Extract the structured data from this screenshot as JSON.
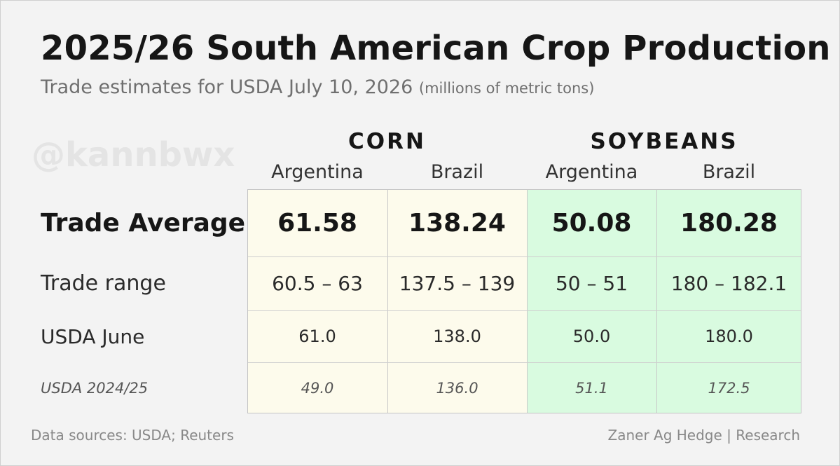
{
  "chart_data": {
    "type": "table",
    "title": "2025/26 South American Crop Production",
    "subtitle": "Trade estimates for USDA July 10, 2026",
    "subtitle_note": "(millions of metric tons)",
    "watermark": "@kannbwx",
    "groups": [
      {
        "name": "CORN",
        "columns": [
          "Argentina",
          "Brazil"
        ]
      },
      {
        "name": "SOYBEANS",
        "columns": [
          "Argentina",
          "Brazil"
        ]
      }
    ],
    "rows": [
      {
        "label": "Trade Average",
        "values": [
          "61.58",
          "138.24",
          "50.08",
          "180.28"
        ]
      },
      {
        "label": "Trade range",
        "values": [
          "60.5 – 63",
          "137.5 – 139",
          "50 – 51",
          "180 – 182.1"
        ]
      },
      {
        "label": "USDA June",
        "values": [
          "61.0",
          "138.0",
          "50.0",
          "180.0"
        ]
      },
      {
        "label": "USDA 2024/25",
        "values": [
          "49.0",
          "136.0",
          "51.1",
          "172.5"
        ]
      }
    ],
    "colors": {
      "corn_fill": "#fdfbec",
      "soybeans_fill": "#d9fbe0"
    }
  },
  "footer": {
    "source": "Data sources: USDA; Reuters",
    "credit": "Zaner Ag Hedge | Research"
  }
}
